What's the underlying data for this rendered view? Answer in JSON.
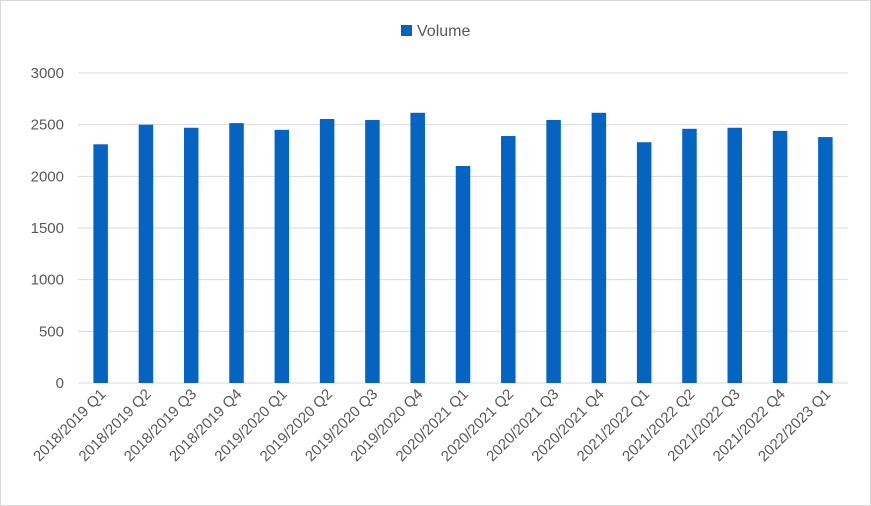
{
  "chart_data": {
    "type": "bar",
    "title": "",
    "xlabel": "",
    "ylabel": "",
    "legend_position": "top",
    "grid": true,
    "ylim": [
      0,
      3000
    ],
    "yticks": [
      0,
      500,
      1000,
      1500,
      2000,
      2500,
      3000
    ],
    "colors": {
      "bar": "#0563c1",
      "grid": "#d9d9d9",
      "text": "#595959"
    },
    "categories": [
      "2018/2019 Q1",
      "2018/2019 Q2",
      "2018/2019 Q3",
      "2018/2019 Q4",
      "2019/2020 Q1",
      "2019/2020 Q2",
      "2019/2020 Q3",
      "2019/2020 Q4",
      "2020/2021 Q1",
      "2020/2021 Q2",
      "2020/2021 Q3",
      "2020/2021 Q4",
      "2021/2022 Q1",
      "2021/2022 Q2",
      "2021/2022 Q3",
      "2021/2022 Q4",
      "2022/2023 Q1"
    ],
    "series": [
      {
        "name": "Volume",
        "values": [
          2310,
          2500,
          2470,
          2515,
          2450,
          2555,
          2545,
          2615,
          2100,
          2390,
          2545,
          2615,
          2330,
          2460,
          2470,
          2440,
          2380
        ]
      }
    ]
  }
}
